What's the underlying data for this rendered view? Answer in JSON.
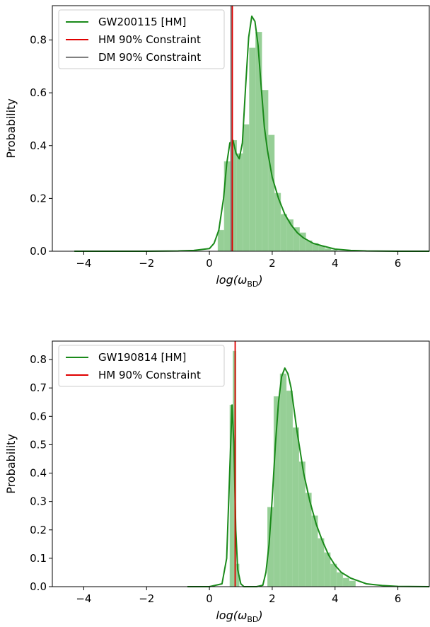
{
  "chart_data": [
    {
      "type": "histogram",
      "xlabel": "log(ω_BD)",
      "xlabel_main": "log(ω",
      "xlabel_sub": "BD",
      "xlabel_close": ")",
      "ylabel": "Probability",
      "xlim": [
        -5,
        7
      ],
      "ylim": [
        0,
        0.93
      ],
      "xticks": [
        -4,
        -2,
        0,
        2,
        4,
        6
      ],
      "xtick_labels": [
        "−4",
        "−2",
        "0",
        "2",
        "4",
        "6"
      ],
      "yticks": [
        0.0,
        0.2,
        0.4,
        0.6,
        0.8
      ],
      "ytick_labels": [
        "0.0",
        "0.2",
        "0.4",
        "0.6",
        "0.8"
      ],
      "legend_position": "top-left",
      "colors": {
        "histogram": "#90cc90",
        "density": "#1a8a1a",
        "hm": "#e00000",
        "dm": "#808080"
      },
      "bins": {
        "edges": [
          0.27,
          0.47,
          0.67,
          0.87,
          1.07,
          1.27,
          1.47,
          1.67,
          1.87,
          2.07,
          2.27,
          2.47,
          2.67,
          2.87,
          3.07,
          3.27,
          3.47,
          3.67,
          3.87,
          4.07
        ],
        "heights": [
          0.08,
          0.34,
          0.42,
          0.37,
          0.48,
          0.77,
          0.83,
          0.61,
          0.44,
          0.22,
          0.14,
          0.12,
          0.09,
          0.07,
          0.04,
          0.03,
          0.02,
          0.01,
          0.005
        ]
      },
      "density": {
        "x": [
          -4.3,
          -3.0,
          -2.0,
          -1.0,
          -0.5,
          0.0,
          0.15,
          0.3,
          0.45,
          0.55,
          0.65,
          0.75,
          0.85,
          0.95,
          1.05,
          1.15,
          1.25,
          1.35,
          1.45,
          1.55,
          1.65,
          1.75,
          1.85,
          2.0,
          2.2,
          2.4,
          2.6,
          2.8,
          3.0,
          3.3,
          3.6,
          4.0,
          4.5,
          5.0,
          6.0,
          7.0
        ],
        "y": [
          0.0,
          0.0,
          0.0,
          0.001,
          0.003,
          0.01,
          0.03,
          0.08,
          0.2,
          0.33,
          0.41,
          0.42,
          0.37,
          0.35,
          0.41,
          0.62,
          0.81,
          0.89,
          0.87,
          0.78,
          0.62,
          0.47,
          0.38,
          0.28,
          0.2,
          0.14,
          0.1,
          0.07,
          0.05,
          0.03,
          0.02,
          0.008,
          0.003,
          0.001,
          0.0,
          0.0
        ]
      },
      "vlines": [
        {
          "x": 0.7,
          "color": "#808080",
          "width": 3
        },
        {
          "x": 0.73,
          "color": "#e00000",
          "width": 1.8
        }
      ],
      "legend": [
        {
          "label": "GW200115 [HM]",
          "color": "#1a8a1a"
        },
        {
          "label": "HM 90% Constraint",
          "color": "#e00000"
        },
        {
          "label": "DM 90% Constraint",
          "color": "#808080"
        }
      ]
    },
    {
      "type": "histogram",
      "xlabel": "log(ω_BD)",
      "xlabel_main": "log(ω",
      "xlabel_sub": "BD",
      "xlabel_close": ")",
      "ylabel": "Probability",
      "xlim": [
        -5,
        7
      ],
      "ylim": [
        0,
        0.865
      ],
      "xticks": [
        -4,
        -2,
        0,
        2,
        4,
        6
      ],
      "xtick_labels": [
        "−4",
        "−2",
        "0",
        "2",
        "4",
        "6"
      ],
      "yticks": [
        0.0,
        0.1,
        0.2,
        0.3,
        0.4,
        0.5,
        0.6,
        0.7,
        0.8
      ],
      "ytick_labels": [
        "0.0",
        "0.1",
        "0.2",
        "0.3",
        "0.4",
        "0.5",
        "0.6",
        "0.7",
        "0.8"
      ],
      "legend_position": "top-left",
      "colors": {
        "histogram": "#90cc90",
        "density": "#1a8a1a",
        "hm": "#e00000"
      },
      "bins": {
        "edges": [
          0.65,
          0.75,
          0.85,
          0.95,
          1.05,
          1.15,
          1.25,
          1.35,
          1.45,
          1.55,
          1.65,
          1.75,
          1.85,
          2.05,
          2.25,
          2.45,
          2.65,
          2.85,
          3.05,
          3.25,
          3.45,
          3.65,
          3.85,
          4.05,
          4.25,
          4.45,
          4.65
        ],
        "heights": [
          0.64,
          0.83,
          0.08,
          0.0,
          0.0,
          0.0,
          0.0,
          0.0,
          0.0,
          0.0,
          0.0,
          0.0,
          0.28,
          0.67,
          0.75,
          0.69,
          0.56,
          0.44,
          0.33,
          0.25,
          0.17,
          0.12,
          0.08,
          0.05,
          0.03,
          0.02
        ]
      },
      "density": {
        "x": [
          -0.7,
          0.0,
          0.4,
          0.55,
          0.65,
          0.72,
          0.78,
          0.84,
          0.9,
          1.0,
          1.1,
          1.3,
          1.5,
          1.7,
          1.8,
          1.9,
          2.0,
          2.1,
          2.2,
          2.3,
          2.4,
          2.5,
          2.6,
          2.7,
          2.8,
          2.9,
          3.0,
          3.2,
          3.4,
          3.6,
          3.8,
          4.0,
          4.2,
          4.5,
          5.0,
          5.5,
          6.0,
          7.0
        ],
        "y": [
          0.0,
          0.0,
          0.01,
          0.1,
          0.42,
          0.64,
          0.5,
          0.2,
          0.06,
          0.01,
          0.0,
          0.0,
          0.0,
          0.005,
          0.05,
          0.15,
          0.31,
          0.5,
          0.65,
          0.74,
          0.77,
          0.75,
          0.7,
          0.62,
          0.54,
          0.47,
          0.4,
          0.3,
          0.22,
          0.16,
          0.11,
          0.075,
          0.05,
          0.03,
          0.01,
          0.004,
          0.001,
          0.0
        ]
      },
      "vlines": [
        {
          "x": 0.82,
          "color": "#e00000",
          "width": 1.8
        }
      ],
      "legend": [
        {
          "label": "GW190814 [HM]",
          "color": "#1a8a1a"
        },
        {
          "label": "HM 90% Constraint",
          "color": "#e00000"
        }
      ]
    }
  ]
}
